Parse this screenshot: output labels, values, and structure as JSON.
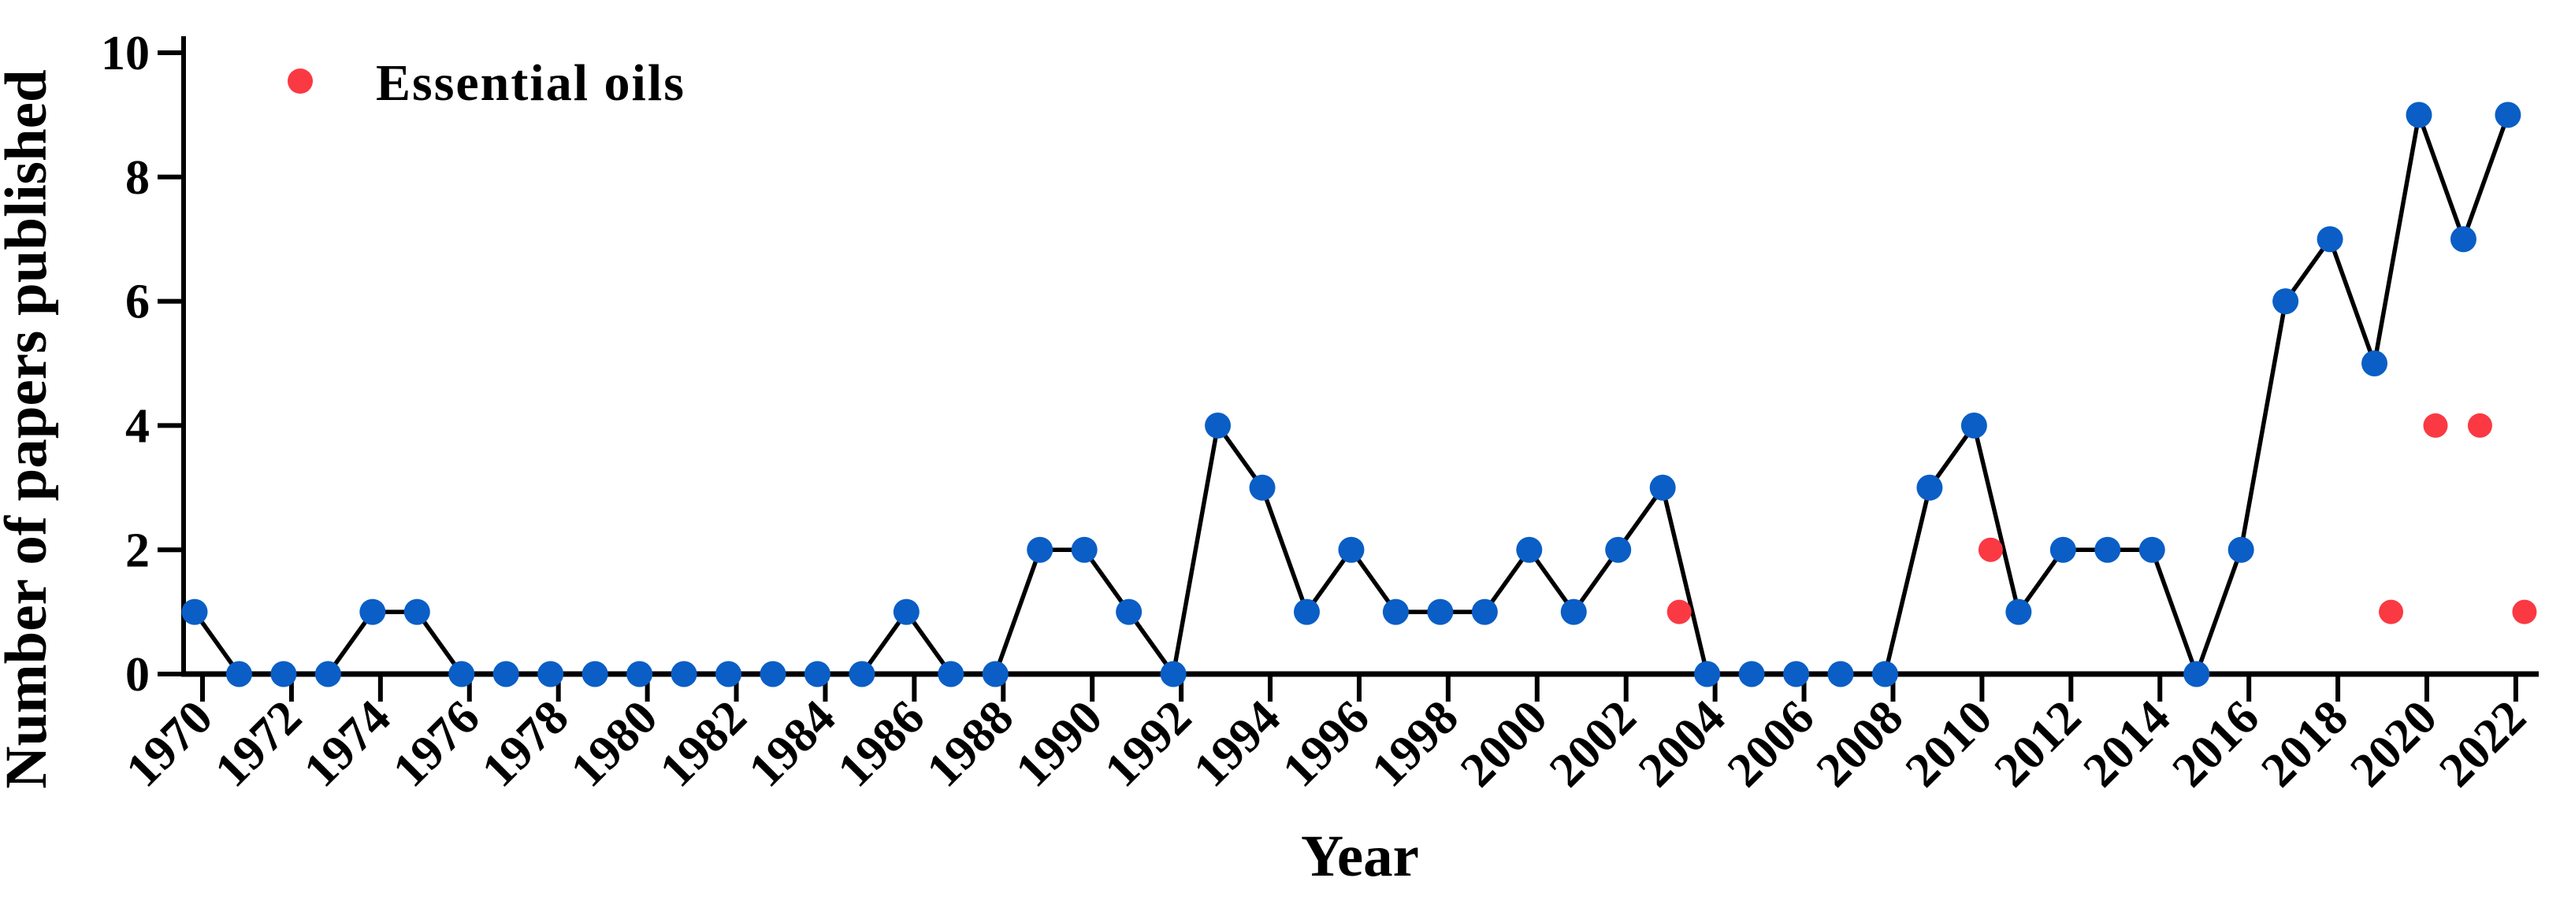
{
  "page": {
    "background": "#ffffff"
  },
  "chart_data": {
    "type": "line",
    "title": "",
    "xlabel": "Year",
    "ylabel": "Number of papers published",
    "grid": false,
    "axis_color": "#000000",
    "line_color": "#000000",
    "ylim": [
      0,
      10
    ],
    "yticks": [
      0,
      2,
      4,
      6,
      8,
      10
    ],
    "xlim": [
      1969.6,
      2022.6
    ],
    "xticks_every": 2,
    "xtick_rotation": 45,
    "x": [
      1970,
      1971,
      1972,
      1973,
      1974,
      1975,
      1976,
      1977,
      1978,
      1979,
      1980,
      1981,
      1982,
      1983,
      1984,
      1985,
      1986,
      1987,
      1988,
      1989,
      1990,
      1991,
      1992,
      1993,
      1994,
      1995,
      1996,
      1997,
      1998,
      1999,
      2000,
      2001,
      2002,
      2003,
      2004,
      2005,
      2006,
      2007,
      2008,
      2009,
      2010,
      2011,
      2012,
      2013,
      2014,
      2015,
      2016,
      2017,
      2018,
      2019,
      2020,
      2021,
      2022
    ],
    "series": [
      {
        "name": "Papers published",
        "marker_color": "#0A5EC6",
        "line_color": "#000000",
        "values": [
          1,
          0,
          0,
          0,
          1,
          1,
          0,
          0,
          0,
          0,
          0,
          0,
          0,
          0,
          0,
          0,
          1,
          0,
          0,
          2,
          2,
          1,
          0,
          4,
          3,
          1,
          2,
          1,
          1,
          1,
          2,
          1,
          2,
          3,
          0,
          0,
          0,
          0,
          0,
          3,
          4,
          1,
          2,
          2,
          2,
          0,
          2,
          6,
          7,
          5,
          9,
          7,
          9
        ]
      }
    ],
    "scatter_series": [
      {
        "name": "Essential oils",
        "color": "#FA3943",
        "points": [
          [
            2003,
            1
          ],
          [
            2010,
            2
          ],
          [
            2019,
            1
          ],
          [
            2020,
            4
          ],
          [
            2021,
            4
          ],
          [
            2022,
            1
          ]
        ]
      }
    ],
    "legend": {
      "position": "upper-left",
      "entries": [
        {
          "label": "Essential oils",
          "marker": "dot",
          "marker_color": "#FA3943"
        }
      ]
    }
  }
}
